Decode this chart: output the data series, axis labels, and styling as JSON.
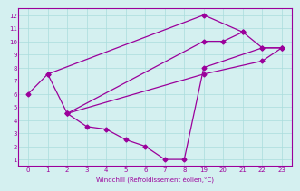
{
  "line1": {
    "xvals": [
      1,
      19,
      21,
      22,
      23
    ],
    "y": [
      7.5,
      12,
      10.7,
      9.5,
      9.5
    ]
  },
  "line2": {
    "xvals": [
      0,
      1,
      2,
      3,
      4,
      5,
      6,
      7,
      8,
      19,
      22,
      23
    ],
    "y": [
      6.0,
      7.5,
      4.5,
      3.5,
      3.3,
      2.5,
      2.0,
      1.0,
      1.0,
      8.0,
      9.5,
      9.5
    ]
  },
  "line3": {
    "xvals": [
      2,
      19,
      22,
      23
    ],
    "y": [
      4.5,
      7.5,
      8.5,
      9.5
    ]
  },
  "line4": {
    "xvals": [
      2,
      19,
      20,
      21
    ],
    "y": [
      4.5,
      10.0,
      10.0,
      10.7
    ]
  },
  "color": "#9b009b",
  "bg_color": "#d4f0f0",
  "xlabel": "Windchill (Refroidissement éolien,°C)",
  "xvalues": [
    0,
    1,
    2,
    3,
    4,
    5,
    6,
    7,
    8,
    19,
    20,
    21,
    22,
    23
  ],
  "xpositions": [
    0,
    1,
    2,
    3,
    4,
    5,
    6,
    7,
    8,
    9,
    10,
    11,
    12,
    13
  ],
  "xlim": [
    -0.5,
    13.5
  ],
  "ylim": [
    0.5,
    12.5
  ],
  "yticks": [
    1,
    2,
    3,
    4,
    5,
    6,
    7,
    8,
    9,
    10,
    11,
    12
  ],
  "grid_color": "#aadddd",
  "marker": "D",
  "markersize": 2.5,
  "linewidth": 0.9
}
